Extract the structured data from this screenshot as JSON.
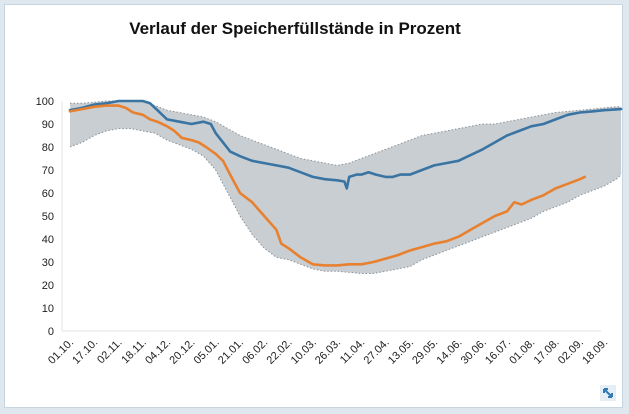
{
  "chart_data": {
    "type": "area",
    "title": "Verlauf der Speicherfüllstände in Prozent",
    "xlabel": "",
    "ylabel": "",
    "ylim": [
      0,
      100
    ],
    "yticks": [
      0,
      10,
      20,
      30,
      40,
      50,
      60,
      70,
      80,
      90,
      100
    ],
    "grid": false,
    "legend": "none",
    "categories": [
      "01.10.",
      "17.10.",
      "02.11.",
      "18.11.",
      "04.12.",
      "20.12.",
      "05.01.",
      "21.01.",
      "06.02.",
      "22.02.",
      "10.03.",
      "26.03.",
      "11.04.",
      "27.04.",
      "13.05.",
      "29.05.",
      "14.06.",
      "30.06.",
      "16.07.",
      "01.08.",
      "17.08.",
      "02.09.",
      "18.09."
    ],
    "band": {
      "color": "#c9ced2",
      "upper": [
        [
          0,
          99
        ],
        [
          0.5,
          99
        ],
        [
          1,
          99.5
        ],
        [
          1.5,
          100
        ],
        [
          2,
          100
        ],
        [
          2.5,
          100
        ],
        [
          3,
          100
        ],
        [
          3.5,
          98
        ],
        [
          4,
          96
        ],
        [
          4.5,
          95
        ],
        [
          5,
          94
        ],
        [
          5.5,
          93
        ],
        [
          6,
          91
        ],
        [
          6.5,
          88
        ],
        [
          7,
          85
        ],
        [
          7.5,
          83
        ],
        [
          8,
          81
        ],
        [
          8.5,
          79
        ],
        [
          9,
          77
        ],
        [
          9.5,
          75
        ],
        [
          10,
          74
        ],
        [
          10.5,
          73
        ],
        [
          11,
          72
        ],
        [
          11.5,
          73
        ],
        [
          12,
          75
        ],
        [
          12.5,
          77
        ],
        [
          13,
          79
        ],
        [
          13.5,
          81
        ],
        [
          14,
          83
        ],
        [
          14.5,
          85
        ],
        [
          15,
          86
        ],
        [
          15.5,
          87
        ],
        [
          16,
          88
        ],
        [
          16.5,
          89
        ],
        [
          17,
          90
        ],
        [
          17.5,
          90
        ],
        [
          18,
          91
        ],
        [
          18.5,
          92
        ],
        [
          19,
          93
        ],
        [
          19.5,
          94
        ],
        [
          20,
          95
        ],
        [
          20.5,
          95.5
        ],
        [
          21,
          96
        ],
        [
          21.5,
          96.5
        ],
        [
          22,
          97
        ],
        [
          22.5,
          97.5
        ],
        [
          22.7,
          97.5
        ]
      ],
      "lower": [
        [
          0,
          80
        ],
        [
          0.5,
          82
        ],
        [
          1,
          85
        ],
        [
          1.5,
          87
        ],
        [
          2,
          88
        ],
        [
          2.5,
          88
        ],
        [
          3,
          87
        ],
        [
          3.5,
          86
        ],
        [
          4,
          83
        ],
        [
          4.5,
          81
        ],
        [
          5,
          79
        ],
        [
          5.5,
          76
        ],
        [
          6,
          70
        ],
        [
          6.5,
          60
        ],
        [
          7,
          50
        ],
        [
          7.5,
          42
        ],
        [
          8,
          36
        ],
        [
          8.5,
          32
        ],
        [
          9,
          31
        ],
        [
          9.5,
          29
        ],
        [
          10,
          27
        ],
        [
          10.5,
          26
        ],
        [
          11,
          26
        ],
        [
          11.5,
          25.5
        ],
        [
          12,
          25
        ],
        [
          12.5,
          25
        ],
        [
          13,
          26
        ],
        [
          13.5,
          27
        ],
        [
          14,
          28
        ],
        [
          14.5,
          31
        ],
        [
          15,
          33
        ],
        [
          15.5,
          35
        ],
        [
          16,
          37
        ],
        [
          16.5,
          39
        ],
        [
          17,
          41
        ],
        [
          17.5,
          43
        ],
        [
          18,
          45
        ],
        [
          18.5,
          47
        ],
        [
          19,
          49
        ],
        [
          19.5,
          52
        ],
        [
          20,
          54
        ],
        [
          20.5,
          56
        ],
        [
          21,
          59
        ],
        [
          21.5,
          61
        ],
        [
          22,
          63
        ],
        [
          22.5,
          66
        ],
        [
          22.7,
          68
        ]
      ]
    },
    "series": [
      {
        "color": "#3a74a3",
        "points": [
          [
            0,
            96
          ],
          [
            0.5,
            97
          ],
          [
            1,
            98.5
          ],
          [
            1.5,
            99
          ],
          [
            2,
            100
          ],
          [
            2.5,
            100
          ],
          [
            3,
            100
          ],
          [
            3.3,
            99
          ],
          [
            3.6,
            96
          ],
          [
            4,
            92
          ],
          [
            4.5,
            91
          ],
          [
            5,
            90
          ],
          [
            5.5,
            91
          ],
          [
            5.8,
            90
          ],
          [
            6,
            86
          ],
          [
            6.3,
            82
          ],
          [
            6.6,
            78
          ],
          [
            7,
            76
          ],
          [
            7.5,
            74
          ],
          [
            8,
            73
          ],
          [
            8.5,
            72
          ],
          [
            9,
            71
          ],
          [
            9.5,
            69
          ],
          [
            10,
            67
          ],
          [
            10.5,
            66
          ],
          [
            11,
            65.5
          ],
          [
            11.3,
            65
          ],
          [
            11.4,
            62
          ],
          [
            11.5,
            67
          ],
          [
            11.8,
            68
          ],
          [
            12,
            68
          ],
          [
            12.3,
            69
          ],
          [
            12.6,
            68
          ],
          [
            13,
            67
          ],
          [
            13.3,
            67
          ],
          [
            13.6,
            68
          ],
          [
            14,
            68
          ],
          [
            14.5,
            70
          ],
          [
            15,
            72
          ],
          [
            15.5,
            73
          ],
          [
            16,
            74
          ],
          [
            16.3,
            75.5
          ],
          [
            16.6,
            77
          ],
          [
            17,
            79
          ],
          [
            17.5,
            82
          ],
          [
            18,
            85
          ],
          [
            18.5,
            87
          ],
          [
            19,
            89
          ],
          [
            19.5,
            90
          ],
          [
            20,
            92
          ],
          [
            20.5,
            94
          ],
          [
            21,
            95
          ],
          [
            21.5,
            95.5
          ],
          [
            22,
            96
          ],
          [
            22.7,
            96.5
          ]
        ]
      },
      {
        "color": "#e8812f",
        "points": [
          [
            0,
            95.5
          ],
          [
            0.5,
            96.5
          ],
          [
            1,
            97.5
          ],
          [
            1.5,
            98
          ],
          [
            2,
            98
          ],
          [
            2.3,
            97
          ],
          [
            2.6,
            95
          ],
          [
            3,
            94
          ],
          [
            3.3,
            92
          ],
          [
            3.6,
            91
          ],
          [
            4,
            89
          ],
          [
            4.3,
            87
          ],
          [
            4.6,
            84
          ],
          [
            5,
            83
          ],
          [
            5.3,
            82
          ],
          [
            5.6,
            80
          ],
          [
            6,
            77
          ],
          [
            6.3,
            74
          ],
          [
            6.6,
            68
          ],
          [
            7,
            60
          ],
          [
            7.5,
            56
          ],
          [
            8,
            50
          ],
          [
            8.5,
            44
          ],
          [
            8.7,
            38
          ],
          [
            9,
            36
          ],
          [
            9.5,
            32
          ],
          [
            10,
            29
          ],
          [
            10.5,
            28.5
          ],
          [
            11,
            28.5
          ],
          [
            11.5,
            29
          ],
          [
            12,
            29
          ],
          [
            12.5,
            30
          ],
          [
            13,
            31.5
          ],
          [
            13.5,
            33
          ],
          [
            14,
            35
          ],
          [
            14.5,
            36.5
          ],
          [
            15,
            38
          ],
          [
            15.5,
            39
          ],
          [
            16,
            41
          ],
          [
            16.5,
            44
          ],
          [
            17,
            47
          ],
          [
            17.5,
            50
          ],
          [
            18,
            52
          ],
          [
            18.3,
            56
          ],
          [
            18.6,
            55
          ],
          [
            19,
            57
          ],
          [
            19.5,
            59
          ],
          [
            20,
            62
          ],
          [
            20.5,
            64
          ],
          [
            21,
            66
          ],
          [
            21.2,
            67
          ]
        ]
      }
    ]
  }
}
